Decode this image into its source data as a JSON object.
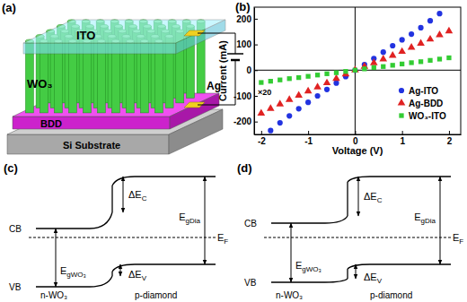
{
  "panel_labels": [
    "(a)",
    "(b)",
    "(c)",
    "(d)"
  ],
  "schematic": {
    "ito": "ITO",
    "wo3": "WO₃",
    "ag": "Ag",
    "bdd": "BDD",
    "si": "Si Substrate"
  },
  "chart_data": {
    "type": "scatter",
    "x_label": "Voltage (V)",
    "y_label": "Current (mA)",
    "x": [
      -2,
      -1.8,
      -1.6,
      -1.4,
      -1.2,
      -1,
      -0.8,
      -0.6,
      -0.4,
      -0.2,
      0,
      0.2,
      0.4,
      0.6,
      0.8,
      1,
      1.2,
      1.4,
      1.6,
      1.8,
      2
    ],
    "series": [
      {
        "name": "Ag-ITO",
        "color": "#2233e0",
        "marker": "circle",
        "values": [
          null,
          -235,
          -205,
          -178,
          -150,
          -125,
          -100,
          -75,
          -50,
          -25,
          0,
          22,
          45,
          70,
          95,
          118,
          140,
          165,
          192,
          220,
          null
        ]
      },
      {
        "name": "Ag-BDD",
        "color": "#e02222",
        "marker": "triangle",
        "values": [
          -168,
          -150,
          -132,
          -115,
          -98,
          -82,
          -66,
          -50,
          -33,
          -16,
          0,
          14,
          28,
          43,
          57,
          72,
          88,
          104,
          120,
          137,
          152
        ]
      },
      {
        "name": "WO₃-ITO",
        "color": "#33cc33",
        "marker": "square",
        "values": [
          -48,
          -43,
          -38,
          -33,
          -29,
          -24,
          -19,
          -14,
          -10,
          -5,
          0,
          5,
          10,
          14,
          19,
          24,
          29,
          33,
          38,
          43,
          48
        ]
      }
    ],
    "annotations": [
      "×20"
    ],
    "xlim": [
      -2.15,
      2.25
    ],
    "xticks": [
      -2,
      -1,
      0,
      1,
      2
    ],
    "ylim": [
      -250,
      245
    ],
    "yticks": [
      -200,
      -100,
      0,
      100,
      200
    ],
    "legend": "lower right",
    "grid": false
  },
  "band_diagrams": [
    {
      "cb": "CB",
      "vb": "VB",
      "left": "n-WO₃",
      "right": "p-diamond",
      "fermi": {
        "text": "E",
        "sub": "F"
      },
      "dEc": {
        "text": "ΔE",
        "sub": "C"
      },
      "dEv": {
        "text": "ΔE",
        "sub": "V"
      },
      "egDia": {
        "text": "E",
        "sub": "gDia"
      },
      "egWO3": {
        "text": "E",
        "sub": "gWO₃"
      }
    },
    {
      "cb": "CB",
      "vb": "VB",
      "left": "n-WO₃",
      "right": "p-diamond",
      "fermi": {
        "text": "E",
        "sub": "F"
      },
      "dEc": {
        "text": "ΔE",
        "sub": "C"
      },
      "dEv": {
        "text": "ΔE",
        "sub": "V"
      },
      "egDia": {
        "text": "E",
        "sub": "gDia"
      },
      "egWO3": {
        "text": "E",
        "sub": "gWO₃"
      }
    }
  ]
}
